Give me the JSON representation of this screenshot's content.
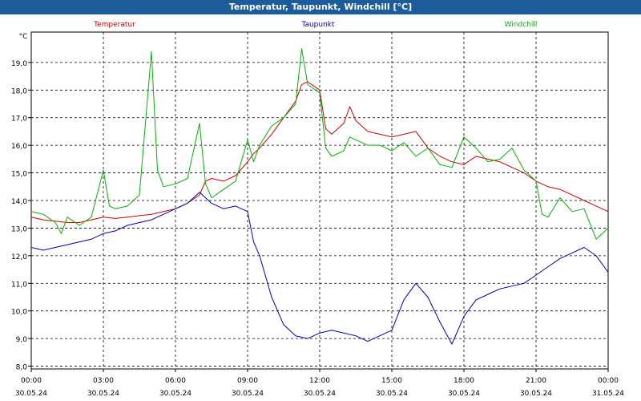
{
  "window": {
    "title": "Temperatur, Taupunkt, Windchill [°C]"
  },
  "colors": {
    "titlebar": "#1d5c9a",
    "temperatur": "#cc0000",
    "taupunkt": "#0000b4",
    "windchill": "#00b400",
    "grid": "#000000"
  },
  "chart_data": {
    "type": "line",
    "title": "Temperatur, Taupunkt, Windchill [°C]",
    "ylabel": "°C",
    "ylim": [
      7.9,
      20.1
    ],
    "xlim": [
      0,
      24
    ],
    "grid": true,
    "legend_placement": "top",
    "yticks": [
      8.0,
      9.0,
      10.0,
      11.0,
      12.0,
      13.0,
      14.0,
      15.0,
      16.0,
      17.0,
      18.0,
      19.0
    ],
    "ytick_labels": [
      "8,0",
      "9,0",
      "10,0",
      "11,0",
      "12,0",
      "13,0",
      "14,0",
      "15,0",
      "16,0",
      "17,0",
      "18,0",
      "19,0"
    ],
    "xticks": [
      0,
      3,
      6,
      9,
      12,
      15,
      18,
      21,
      24
    ],
    "xtick_time_labels": [
      "00:00",
      "03:00",
      "06:00",
      "09:00",
      "12:00",
      "15:00",
      "18:00",
      "21:00",
      "00:00"
    ],
    "xtick_date_labels": [
      "30.05.24",
      "30.05.24",
      "30.05.24",
      "30.05.24",
      "30.05.24",
      "30.05.24",
      "30.05.24",
      "30.05.24",
      "31.05.24"
    ],
    "series": [
      {
        "name": "Temperatur",
        "color": "#cc0000",
        "x": [
          0,
          0.5,
          1,
          1.5,
          2,
          2.5,
          3,
          3.5,
          4,
          4.5,
          5,
          5.5,
          6,
          6.5,
          7,
          7.25,
          7.5,
          8,
          8.5,
          9,
          9.25,
          9.5,
          10,
          10.5,
          11,
          11.25,
          11.5,
          12,
          12.25,
          12.5,
          13,
          13.25,
          13.5,
          14,
          14.5,
          15,
          15.5,
          16,
          16.5,
          17,
          17.5,
          18,
          18.5,
          19,
          19.5,
          20,
          20.5,
          21,
          21.5,
          22,
          22.5,
          23,
          23.5,
          24
        ],
        "y": [
          13.4,
          13.3,
          13.25,
          13.2,
          13.2,
          13.3,
          13.4,
          13.35,
          13.4,
          13.45,
          13.5,
          13.6,
          13.7,
          13.9,
          14.2,
          14.7,
          14.8,
          14.7,
          14.9,
          15.4,
          15.7,
          15.9,
          16.4,
          17.0,
          17.6,
          18.2,
          18.3,
          18.0,
          16.6,
          16.4,
          16.8,
          17.4,
          16.9,
          16.5,
          16.4,
          16.3,
          16.4,
          16.5,
          15.9,
          15.6,
          15.4,
          15.3,
          15.6,
          15.5,
          15.4,
          15.2,
          15.0,
          14.7,
          14.5,
          14.4,
          14.2,
          14.0,
          13.8,
          13.6
        ]
      },
      {
        "name": "Taupunkt",
        "color": "#0000b4",
        "x": [
          0,
          0.5,
          1,
          1.5,
          2,
          2.5,
          3,
          3.5,
          4,
          4.5,
          5,
          5.5,
          6,
          6.5,
          7,
          7.25,
          7.5,
          8,
          8.5,
          9,
          9.25,
          9.5,
          10,
          10.5,
          11,
          11.5,
          12,
          12.5,
          13,
          13.5,
          14,
          14.5,
          15,
          15.5,
          16,
          16.5,
          17,
          17.5,
          18,
          18.5,
          19,
          19.5,
          20,
          20.5,
          21,
          21.5,
          22,
          22.5,
          23,
          23.5,
          24
        ],
        "y": [
          12.3,
          12.2,
          12.3,
          12.4,
          12.5,
          12.6,
          12.8,
          12.9,
          13.1,
          13.2,
          13.3,
          13.5,
          13.7,
          13.9,
          14.3,
          14.1,
          13.9,
          13.7,
          13.8,
          13.6,
          12.5,
          12.0,
          10.5,
          9.5,
          9.1,
          9.0,
          9.2,
          9.3,
          9.2,
          9.1,
          8.9,
          9.1,
          9.3,
          10.4,
          11.0,
          10.5,
          9.6,
          8.8,
          9.8,
          10.4,
          10.6,
          10.8,
          10.9,
          11.0,
          11.3,
          11.6,
          11.9,
          12.1,
          12.3,
          12.0,
          11.4
        ]
      },
      {
        "name": "Windchill",
        "color": "#00b400",
        "x": [
          0,
          0.5,
          1,
          1.25,
          1.5,
          2,
          2.5,
          3,
          3.25,
          3.5,
          4,
          4.5,
          4.75,
          5,
          5.25,
          5.5,
          6,
          6.5,
          7,
          7.25,
          7.5,
          8,
          8.5,
          9,
          9.25,
          9.5,
          10,
          10.5,
          11,
          11.25,
          11.5,
          12,
          12.25,
          12.5,
          13,
          13.25,
          13.5,
          14,
          14.5,
          15,
          15.5,
          16,
          16.5,
          17,
          17.5,
          18,
          18.5,
          19,
          19.5,
          20,
          20.5,
          21,
          21.25,
          21.5,
          22,
          22.5,
          23,
          23.5,
          24
        ],
        "y": [
          13.6,
          13.5,
          13.2,
          12.8,
          13.4,
          13.1,
          13.4,
          15.1,
          13.8,
          13.7,
          13.8,
          14.2,
          16.8,
          19.4,
          15.1,
          14.5,
          14.6,
          14.8,
          16.8,
          14.6,
          14.1,
          14.4,
          14.7,
          16.2,
          15.4,
          16.0,
          16.7,
          17.0,
          17.5,
          19.5,
          18.2,
          17.9,
          15.9,
          15.6,
          15.8,
          16.3,
          16.2,
          16.0,
          16.0,
          15.8,
          16.1,
          15.6,
          15.9,
          15.3,
          15.2,
          16.3,
          15.9,
          15.4,
          15.5,
          15.9,
          15.1,
          14.7,
          13.5,
          13.4,
          14.1,
          13.6,
          13.7,
          12.6,
          13.0
        ]
      }
    ]
  }
}
